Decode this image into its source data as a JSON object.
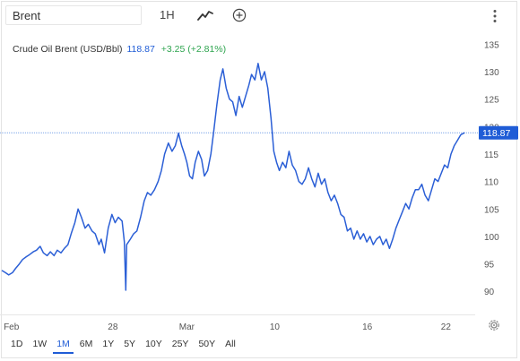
{
  "toolbar": {
    "symbol_value": "Brent",
    "interval_label": "1H",
    "chart_type_icon": "line-chart-icon",
    "add_indicator_icon": "plus-circle-icon",
    "more_icon": "vertical-dots-icon"
  },
  "legend": {
    "instrument": "Crude Oil Brent (USD/Bbl)",
    "last": "118.87",
    "change": "+3.25 (+2.81%)"
  },
  "price_tag": "118.87",
  "colors": {
    "line": "#2b5fd6",
    "change_positive": "#2ea44f",
    "active_range": "#1f5cd6"
  },
  "ranges": [
    "1D",
    "1W",
    "1M",
    "6M",
    "1Y",
    "5Y",
    "10Y",
    "25Y",
    "50Y",
    "All"
  ],
  "active_range": "1M",
  "settings_icon": "gear-icon",
  "chart_data": {
    "type": "line",
    "title": "",
    "xlabel": "",
    "ylabel": "",
    "x_ticks": [
      {
        "label": "Feb",
        "pos": 0.4
      },
      {
        "label": "28",
        "pos": 24.0
      },
      {
        "label": "Mar",
        "pos": 40.0
      },
      {
        "label": "10",
        "pos": 59.0
      },
      {
        "label": "16",
        "pos": 79.0
      },
      {
        "label": "22",
        "pos": 96.0
      }
    ],
    "xlim": [
      0,
      100
    ],
    "y_ticks": [
      90,
      95,
      100,
      105,
      110,
      115,
      120,
      125,
      130,
      135
    ],
    "ylim": [
      85.8,
      137.5
    ],
    "last_price": 118.87,
    "grid": false,
    "series": [
      {
        "points": [
          [
            0.0,
            93.8
          ],
          [
            0.8,
            93.4
          ],
          [
            1.5,
            93.0
          ],
          [
            2.3,
            93.4
          ],
          [
            3.0,
            94.2
          ],
          [
            3.8,
            95.0
          ],
          [
            4.5,
            95.8
          ],
          [
            5.3,
            96.3
          ],
          [
            6.0,
            96.7
          ],
          [
            6.8,
            97.2
          ],
          [
            7.5,
            97.5
          ],
          [
            8.3,
            98.2
          ],
          [
            9.0,
            97.0
          ],
          [
            9.8,
            96.5
          ],
          [
            10.5,
            97.2
          ],
          [
            11.3,
            96.5
          ],
          [
            12.0,
            97.5
          ],
          [
            12.8,
            97.0
          ],
          [
            13.5,
            97.8
          ],
          [
            14.3,
            98.5
          ],
          [
            15.0,
            100.5
          ],
          [
            15.8,
            102.5
          ],
          [
            16.5,
            105.0
          ],
          [
            17.2,
            103.5
          ],
          [
            18.0,
            101.5
          ],
          [
            18.7,
            102.2
          ],
          [
            19.5,
            101.0
          ],
          [
            20.2,
            100.5
          ],
          [
            21.0,
            98.5
          ],
          [
            21.5,
            99.5
          ],
          [
            22.2,
            97.0
          ],
          [
            23.0,
            101.5
          ],
          [
            23.8,
            104.0
          ],
          [
            24.5,
            102.5
          ],
          [
            25.2,
            103.5
          ],
          [
            26.0,
            102.8
          ],
          [
            26.5,
            99.0
          ],
          [
            26.8,
            90.2
          ],
          [
            27.0,
            98.5
          ],
          [
            27.8,
            99.5
          ],
          [
            28.5,
            100.5
          ],
          [
            29.2,
            101.0
          ],
          [
            30.0,
            103.5
          ],
          [
            30.8,
            106.5
          ],
          [
            31.5,
            108.0
          ],
          [
            32.2,
            107.5
          ],
          [
            33.0,
            108.5
          ],
          [
            33.8,
            110.0
          ],
          [
            34.5,
            112.0
          ],
          [
            35.2,
            115.0
          ],
          [
            36.0,
            117.0
          ],
          [
            36.8,
            115.5
          ],
          [
            37.5,
            116.5
          ],
          [
            38.2,
            118.8
          ],
          [
            38.9,
            116.5
          ],
          [
            39.5,
            115.0
          ],
          [
            40.0,
            113.5
          ],
          [
            40.6,
            111.0
          ],
          [
            41.2,
            110.5
          ],
          [
            41.8,
            113.5
          ],
          [
            42.5,
            115.5
          ],
          [
            43.2,
            114.0
          ],
          [
            43.8,
            111.0
          ],
          [
            44.5,
            112.0
          ],
          [
            45.2,
            115.0
          ],
          [
            45.8,
            119.0
          ],
          [
            46.5,
            124.0
          ],
          [
            47.2,
            128.5
          ],
          [
            47.8,
            130.5
          ],
          [
            48.5,
            127.0
          ],
          [
            49.2,
            125.0
          ],
          [
            49.9,
            124.5
          ],
          [
            50.6,
            122.0
          ],
          [
            51.3,
            125.5
          ],
          [
            52.0,
            123.5
          ],
          [
            52.7,
            125.5
          ],
          [
            53.4,
            127.5
          ],
          [
            54.0,
            129.5
          ],
          [
            54.7,
            128.5
          ],
          [
            55.4,
            131.5
          ],
          [
            56.1,
            128.5
          ],
          [
            56.8,
            130.0
          ],
          [
            57.5,
            127.0
          ],
          [
            58.2,
            121.5
          ],
          [
            58.8,
            115.5
          ],
          [
            59.4,
            113.5
          ],
          [
            60.0,
            112.0
          ],
          [
            60.7,
            113.5
          ],
          [
            61.4,
            112.5
          ],
          [
            62.1,
            115.5
          ],
          [
            62.8,
            113.0
          ],
          [
            63.5,
            112.0
          ],
          [
            64.2,
            110.0
          ],
          [
            64.9,
            109.5
          ],
          [
            65.6,
            110.5
          ],
          [
            66.3,
            112.5
          ],
          [
            67.0,
            110.5
          ],
          [
            67.7,
            109.0
          ],
          [
            68.4,
            111.5
          ],
          [
            69.1,
            109.5
          ],
          [
            69.8,
            110.5
          ],
          [
            70.5,
            108.0
          ],
          [
            71.2,
            106.5
          ],
          [
            71.9,
            107.5
          ],
          [
            72.6,
            106.0
          ],
          [
            73.3,
            104.0
          ],
          [
            74.0,
            103.5
          ],
          [
            74.7,
            101.0
          ],
          [
            75.4,
            101.5
          ],
          [
            76.1,
            99.5
          ],
          [
            76.8,
            101.0
          ],
          [
            77.5,
            99.5
          ],
          [
            78.2,
            100.5
          ],
          [
            78.9,
            99.0
          ],
          [
            79.6,
            100.0
          ],
          [
            80.3,
            98.5
          ],
          [
            81.0,
            99.5
          ],
          [
            81.7,
            100.0
          ],
          [
            82.4,
            98.5
          ],
          [
            83.1,
            99.5
          ],
          [
            83.8,
            97.8
          ],
          [
            84.5,
            99.5
          ],
          [
            85.2,
            101.5
          ],
          [
            85.9,
            103.0
          ],
          [
            86.6,
            104.5
          ],
          [
            87.3,
            106.0
          ],
          [
            88.0,
            105.0
          ],
          [
            88.7,
            107.0
          ],
          [
            89.4,
            108.5
          ],
          [
            90.1,
            108.5
          ],
          [
            90.8,
            109.5
          ],
          [
            91.5,
            107.5
          ],
          [
            92.2,
            106.5
          ],
          [
            92.9,
            108.5
          ],
          [
            93.6,
            110.5
          ],
          [
            94.3,
            110.0
          ],
          [
            95.0,
            111.5
          ],
          [
            95.7,
            113.0
          ],
          [
            96.4,
            112.5
          ],
          [
            97.1,
            115.0
          ],
          [
            97.8,
            116.5
          ],
          [
            98.5,
            117.5
          ],
          [
            99.2,
            118.5
          ],
          [
            100.0,
            118.87
          ]
        ]
      }
    ]
  }
}
